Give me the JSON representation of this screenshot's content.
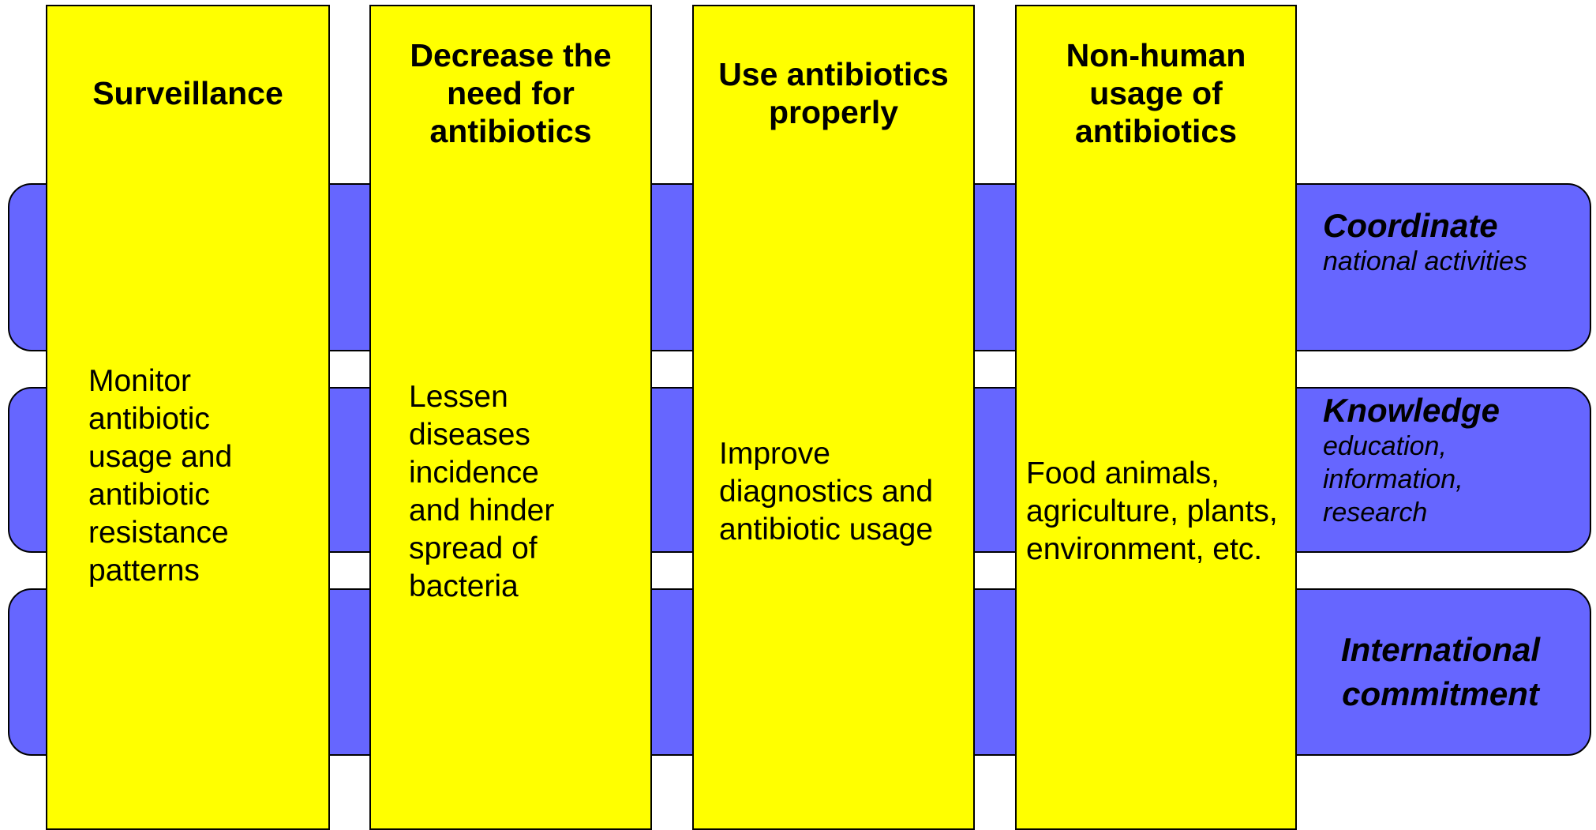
{
  "columns": [
    {
      "title": "Surveillance",
      "body": "Monitor antibiotic usage and antibiotic resistance patterns"
    },
    {
      "title": "Decrease the need for antibiotics",
      "body": "Lessen diseases incidence and hinder spread of bacteria"
    },
    {
      "title": "Use antibiotics properly",
      "body": "Improve diagnostics and antibiotic usage"
    },
    {
      "title": "Non-human usage of antibiotics",
      "body": "Food animals, agriculture, plants, environment, etc."
    }
  ],
  "bands": [
    {
      "title": "Coordinate",
      "subtitle": "national activities"
    },
    {
      "title": "Knowledge",
      "subtitle": "education, information, research"
    },
    {
      "title": "International commitment"
    }
  ]
}
